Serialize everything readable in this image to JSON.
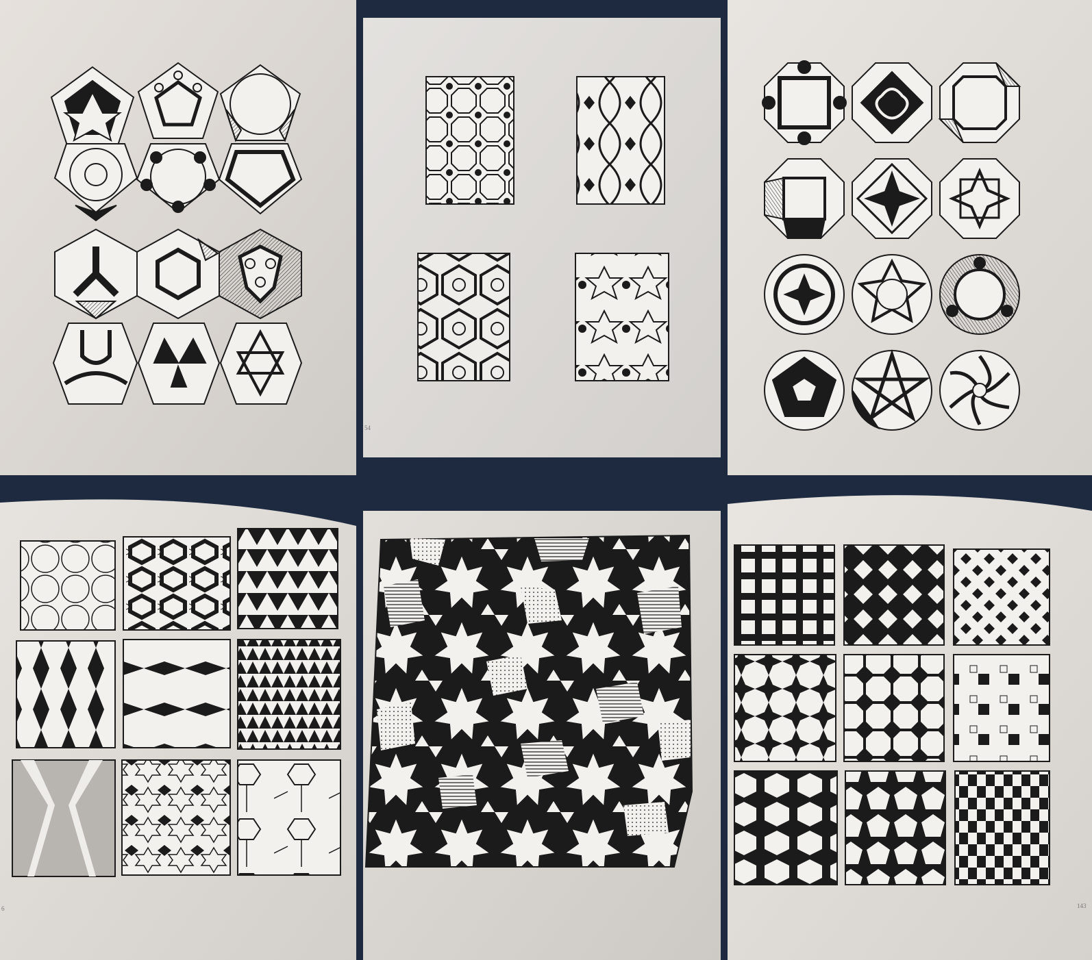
{
  "photos": [
    {
      "id": "p1",
      "subject": "pentagon-hexagon-medallions",
      "rows": 4,
      "cols": 3
    },
    {
      "id": "p2",
      "subject": "rectangular-geometric-panels",
      "rows": 2,
      "cols": 2
    },
    {
      "id": "p3",
      "subject": "octagon-decagon-medallions",
      "rows": 4,
      "cols": 3
    },
    {
      "id": "p4",
      "subject": "tessellation-squares",
      "rows": 3,
      "cols": 3
    },
    {
      "id": "p5",
      "subject": "star-tessellation-large",
      "rows": 1,
      "cols": 1
    },
    {
      "id": "p6",
      "subject": "black-white-tile-squares",
      "rows": 3,
      "cols": 3
    }
  ],
  "folios": {
    "p2": "54",
    "p4": "6",
    "p6": "143"
  },
  "colors": {
    "page": "#ebe8e4",
    "ink": "#1b1b1b",
    "background": "#1e2a3f",
    "hatch": "#8a8a8a"
  }
}
